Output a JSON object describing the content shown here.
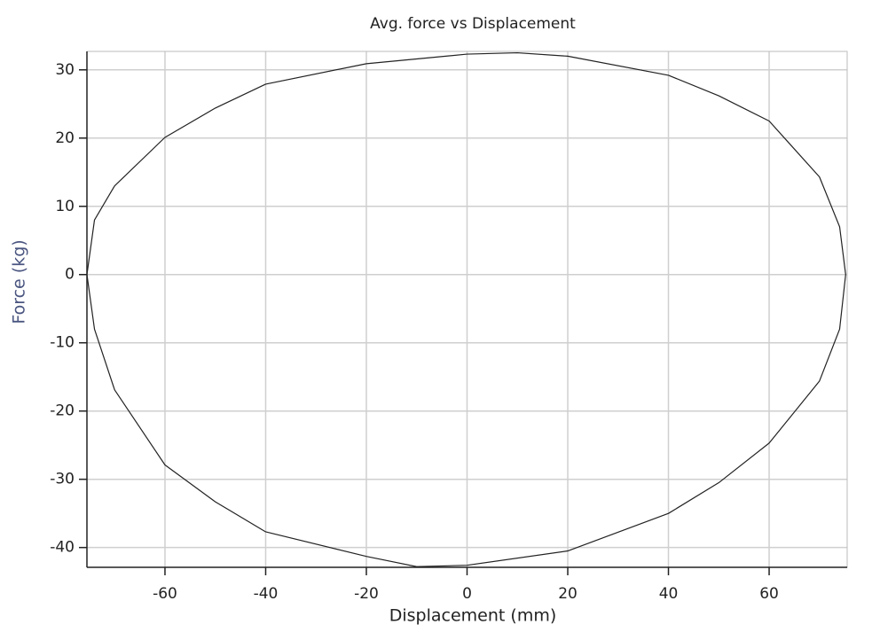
{
  "chart_data": {
    "type": "line",
    "title": "Avg. force vs Displacement",
    "x_label": "Displacement (mm)",
    "y_label": "Force (kg)",
    "x": [
      -75.5,
      -74,
      -70,
      -60,
      -50,
      -40,
      -20,
      0,
      10,
      20,
      40,
      50,
      60,
      70,
      74,
      75.2,
      74,
      70,
      60,
      50,
      40,
      20,
      0,
      -10,
      -20,
      -40,
      -50,
      -60,
      -70,
      -74,
      -75.5
    ],
    "series": [
      {
        "color": "#222222",
        "values": [
          0,
          8,
          13,
          20.1,
          24.4,
          27.9,
          30.9,
          32.3,
          32.5,
          32,
          29.2,
          26.2,
          22.5,
          14.3,
          7,
          0,
          -8,
          -15.6,
          -24.7,
          -30.5,
          -35,
          -40.5,
          -42.6,
          -42.8,
          -41.3,
          -37.7,
          -33.3,
          -27.9,
          -16.9,
          -8,
          0
        ]
      }
    ],
    "xlim": [
      -75.5,
      75.5
    ],
    "ylim": [
      -42.9,
      32.7
    ],
    "xticks": [
      -60,
      -40,
      -20,
      0,
      20,
      40,
      60
    ],
    "yticks": [
      -40,
      -30,
      -20,
      -10,
      0,
      10,
      20,
      30
    ],
    "grid": true
  }
}
